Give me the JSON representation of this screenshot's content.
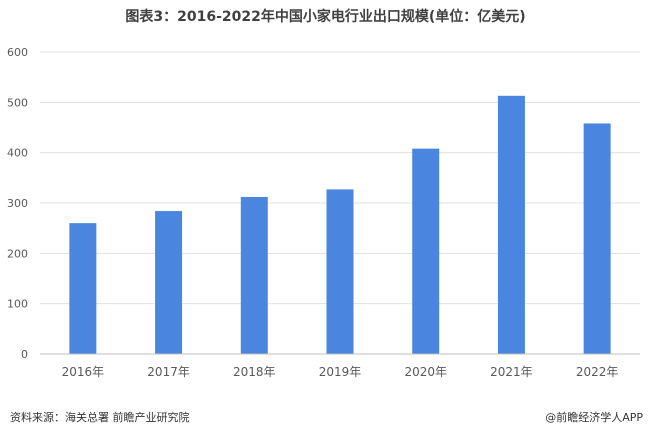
{
  "chart_data": {
    "type": "bar",
    "title": "图表3：2016-2022年中国小家电行业出口规模(单位：亿美元)",
    "categories": [
      "2016年",
      "2017年",
      "2018年",
      "2019年",
      "2020年",
      "2021年",
      "2022年"
    ],
    "values": [
      260,
      284,
      312,
      327,
      408,
      513,
      458
    ],
    "ylim": [
      0,
      600
    ],
    "yticks": [
      "0",
      "100",
      "200",
      "300",
      "400",
      "500",
      "600"
    ],
    "grid": true,
    "legend": "none",
    "bar_color": "#4a86e0",
    "grid_color": "#e0e0e0"
  },
  "footer": {
    "source": "资料来源：海关总署 前瞻产业研究院",
    "brand": "@前瞻经济学人APP"
  }
}
